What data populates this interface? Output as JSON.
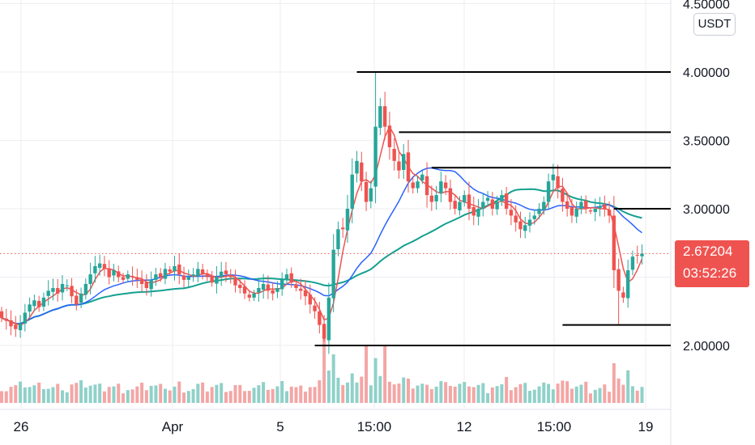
{
  "chart": {
    "unit_label": "USDT",
    "last_price_label": "2.67204",
    "countdown_label": "03:52:26"
  },
  "colors": {
    "up": "#26a69a",
    "down": "#ef5350",
    "vol_up": "#8fd1c9",
    "vol_down": "#f3a6a5",
    "ma_fast": "#ef5350",
    "ma_mid": "#2962ff",
    "ma_slow": "#14a090",
    "level_line": "#000000",
    "grid": "#eceef2",
    "axis_text": "#131722"
  },
  "chart_data": {
    "type": "candlestick",
    "title": "",
    "xlabel": "",
    "ylabel": "",
    "unit": "USDT",
    "ylim": [
      1.6,
      4.5
    ],
    "y_ticks": [
      "4.50000",
      "4.00000",
      "3.50000",
      "3.00000",
      "2.00000"
    ],
    "x_ticks": [
      "26",
      "Apr",
      "5",
      "15:00",
      "12",
      "15:00",
      "19"
    ],
    "last_price": 2.67204,
    "countdown": "03:52:26",
    "grid": true,
    "horizontal_levels": [
      {
        "price": 4.0,
        "from_candle": 76,
        "to_candle": 140
      },
      {
        "price": 3.56,
        "from_candle": 85,
        "to_candle": 140
      },
      {
        "price": 3.3,
        "from_candle": 92,
        "to_candle": 140
      },
      {
        "price": 3.0,
        "from_candle": 131,
        "to_candle": 140
      },
      {
        "price": 2.15,
        "from_candle": 120,
        "to_candle": 140
      },
      {
        "price": 2.0,
        "from_candle": 67,
        "to_candle": 140
      }
    ],
    "candles_close": [
      2.2,
      2.18,
      2.14,
      2.12,
      2.16,
      2.24,
      2.3,
      2.33,
      2.28,
      2.35,
      2.4,
      2.42,
      2.38,
      2.45,
      2.44,
      2.36,
      2.3,
      2.38,
      2.45,
      2.52,
      2.58,
      2.6,
      2.56,
      2.5,
      2.55,
      2.5,
      2.48,
      2.52,
      2.5,
      2.48,
      2.45,
      2.42,
      2.48,
      2.52,
      2.5,
      2.56,
      2.54,
      2.58,
      2.52,
      2.48,
      2.5,
      2.52,
      2.56,
      2.52,
      2.5,
      2.46,
      2.5,
      2.54,
      2.52,
      2.5,
      2.44,
      2.42,
      2.38,
      2.35,
      2.38,
      2.42,
      2.45,
      2.4,
      2.38,
      2.42,
      2.48,
      2.52,
      2.46,
      2.42,
      2.4,
      2.36,
      2.3,
      2.25,
      2.15,
      2.05,
      2.35,
      2.7,
      2.85,
      2.85,
      3.0,
      3.25,
      3.35,
      3.2,
      3.05,
      3.15,
      3.6,
      3.75,
      3.6,
      3.45,
      3.35,
      3.28,
      3.4,
      3.2,
      3.15,
      3.2,
      3.25,
      3.1,
      3.05,
      3.1,
      3.2,
      3.15,
      3.05,
      3.0,
      3.05,
      3.1,
      3.0,
      2.95,
      3.0,
      3.05,
      3.08,
      3.0,
      3.05,
      3.1,
      3.0,
      2.95,
      2.9,
      2.85,
      2.88,
      2.92,
      2.95,
      3.0,
      3.05,
      3.2,
      3.25,
      3.15,
      3.05,
      3.0,
      2.95,
      3.0,
      3.05,
      3.0,
      2.98,
      3.0,
      3.02,
      3.0,
      2.95,
      2.55,
      2.4,
      2.35,
      2.55,
      2.65,
      2.66,
      2.67204
    ],
    "ma_fast_end": 2.63,
    "ma_mid_end": 2.9,
    "ma_slow_end": 3.06
  }
}
